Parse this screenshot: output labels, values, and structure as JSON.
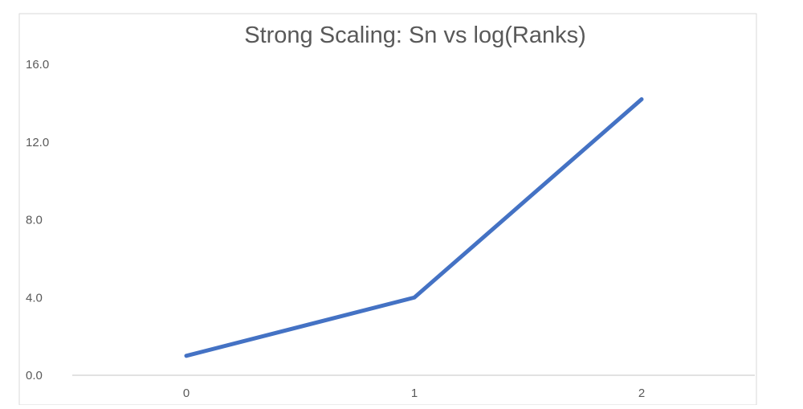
{
  "chart_data": {
    "type": "line",
    "title": "Strong Scaling: Sn vs log(Ranks)",
    "xlabel": "",
    "ylabel": "",
    "categories": [
      "0",
      "1",
      "2"
    ],
    "series": [
      {
        "values": [
          1.0,
          4.0,
          14.2
        ]
      }
    ],
    "ylim": [
      0,
      16
    ],
    "yticks": [
      "0.0",
      "4.0",
      "8.0",
      "12.0",
      "16.0"
    ],
    "grid": false,
    "legend": "none",
    "colors": {
      "line": "#4472C4",
      "axis": "#D9D9D9",
      "text": "#595959",
      "border": "#D9D9D9"
    }
  }
}
